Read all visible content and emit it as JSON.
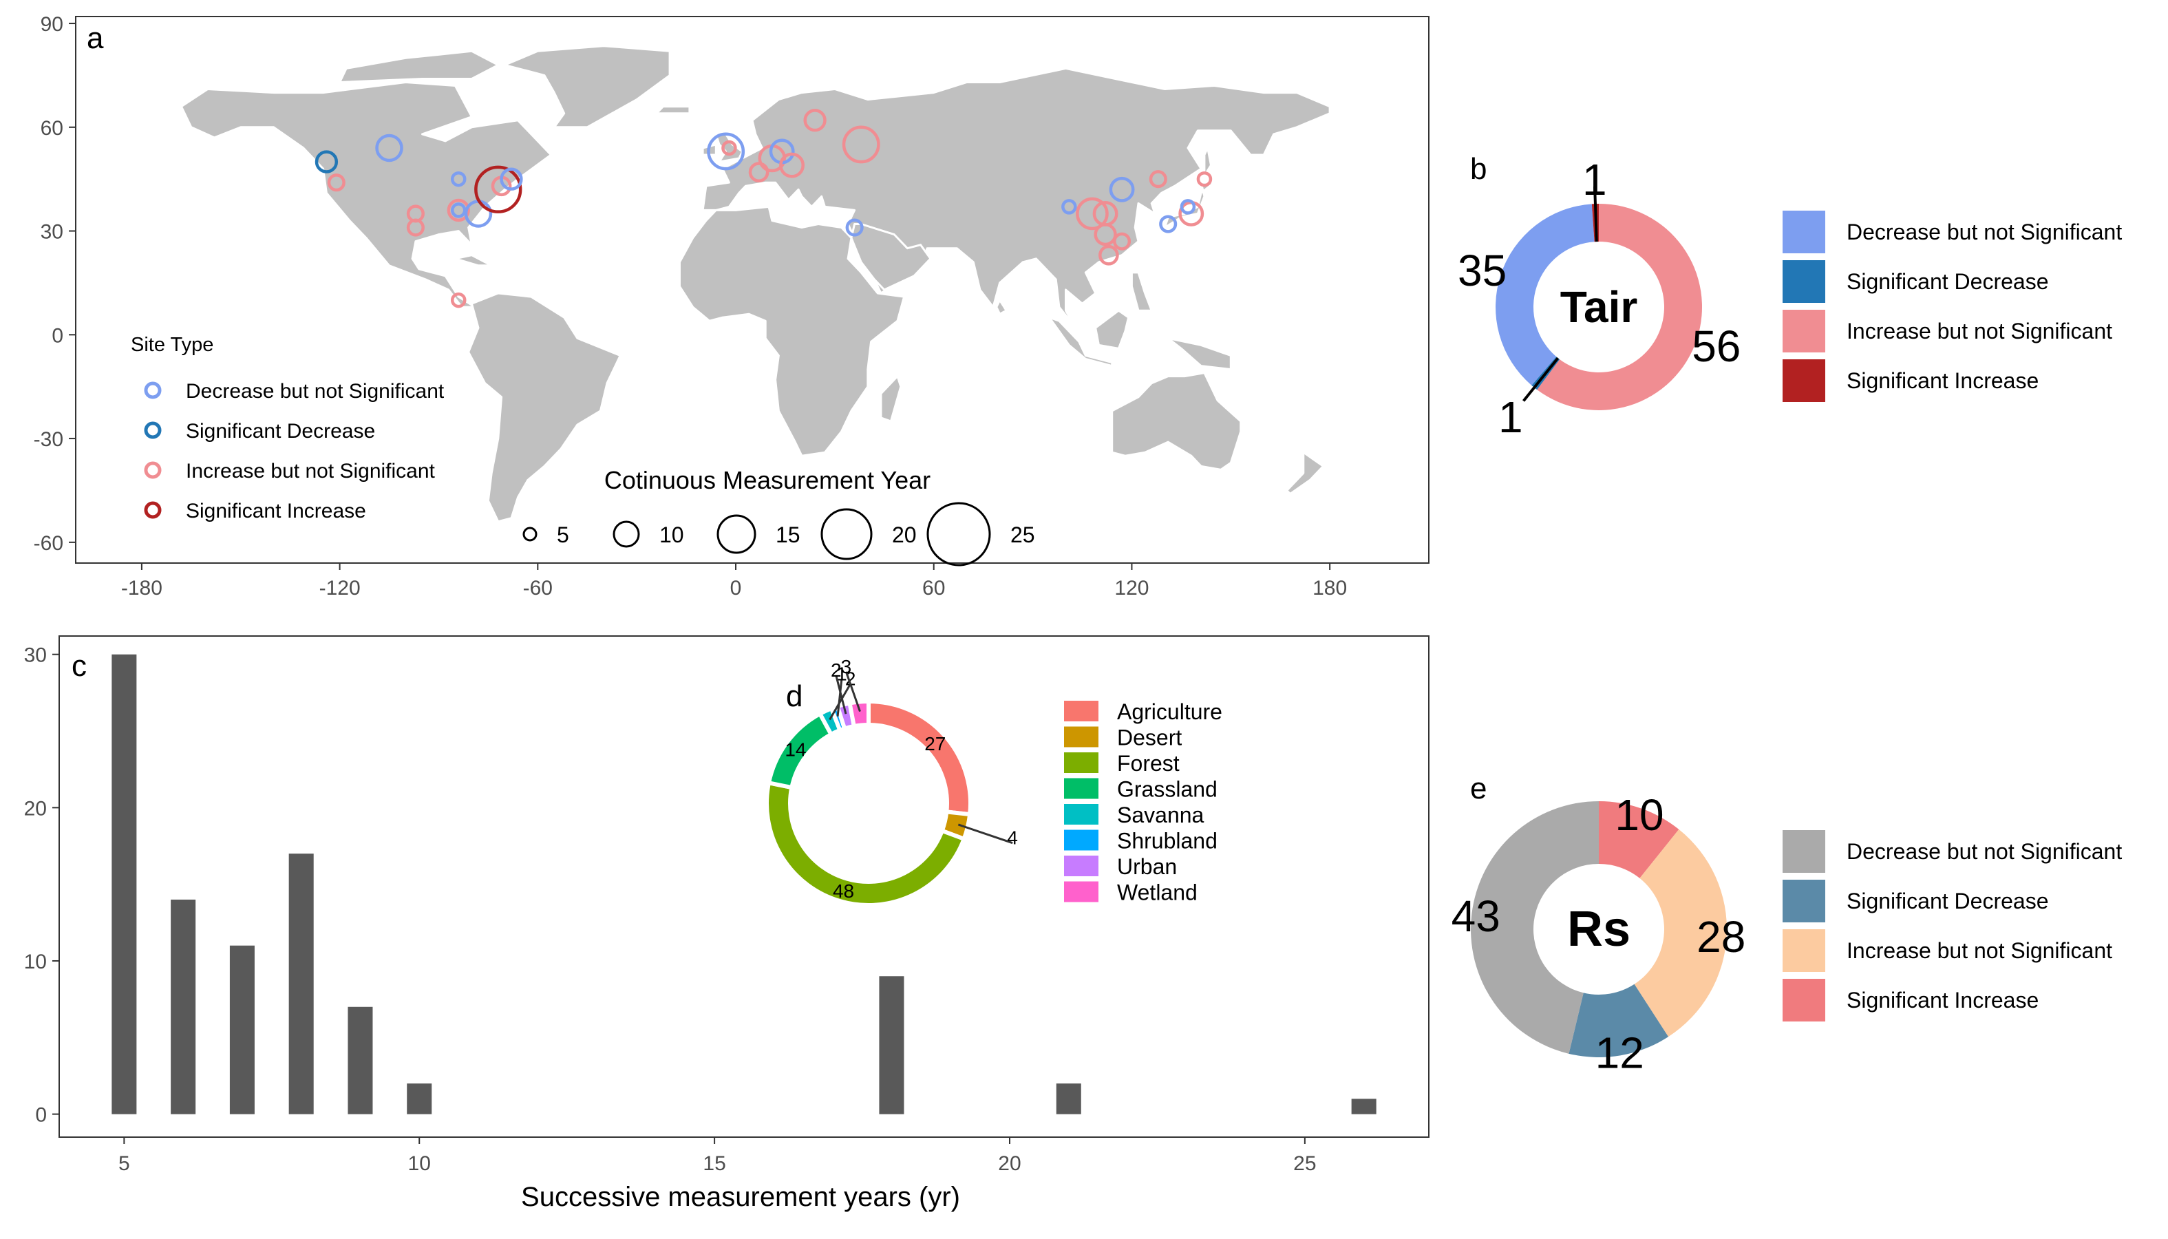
{
  "colors": {
    "decrease_ns": "#7d9ef0",
    "decrease_sig": "#2277b5",
    "increase_ns": "#f08d92",
    "increase_sig": "#b22121",
    "land": "#c0c0c0",
    "bar": "#595959",
    "rs_decrease_ns": "#aaaaaa",
    "rs_decrease_sig": "#5b8aa8",
    "rs_increase_ns": "#fccba0",
    "rs_increase_sig": "#f07b7e"
  },
  "chart_data": [
    {
      "panel_label": "a",
      "type": "scatter",
      "x_ticks": [
        "-180",
        "-120",
        "-60",
        "0",
        "60",
        "120",
        "180"
      ],
      "y_ticks": [
        "90",
        "60",
        "30",
        "0",
        "-30",
        "-60"
      ],
      "xlim": [
        -200,
        210
      ],
      "ylim": [
        -66,
        92
      ],
      "site_legend": {
        "title": "Site Type",
        "items": [
          {
            "key": "decrease_ns",
            "label": "Decrease but not Significant"
          },
          {
            "key": "decrease_sig",
            "label": "Significant Decrease"
          },
          {
            "key": "increase_ns",
            "label": "Increase but not Significant"
          },
          {
            "key": "increase_sig",
            "label": "Significant Increase"
          }
        ]
      },
      "size_legend": {
        "title": "Cotinuous Measurement Year",
        "values": [
          "5",
          "10",
          "15",
          "20",
          "25"
        ]
      },
      "points": [
        {
          "lon": -124,
          "lat": 50,
          "years": 8,
          "type": "decrease_sig"
        },
        {
          "lon": -121,
          "lat": 44,
          "years": 6,
          "type": "increase_ns"
        },
        {
          "lon": -105,
          "lat": 54,
          "years": 10,
          "type": "decrease_ns"
        },
        {
          "lon": -97,
          "lat": 35,
          "years": 6,
          "type": "increase_ns"
        },
        {
          "lon": -97,
          "lat": 31,
          "years": 6,
          "type": "increase_ns"
        },
        {
          "lon": -84,
          "lat": 45,
          "years": 5,
          "type": "decrease_ns"
        },
        {
          "lon": -84,
          "lat": 36,
          "years": 8,
          "type": "increase_ns"
        },
        {
          "lon": -84,
          "lat": 36,
          "years": 5,
          "type": "decrease_ns"
        },
        {
          "lon": -78,
          "lat": 35,
          "years": 10,
          "type": "decrease_ns"
        },
        {
          "lon": -72,
          "lat": 42,
          "years": 18,
          "type": "increase_sig"
        },
        {
          "lon": -71,
          "lat": 43,
          "years": 7,
          "type": "increase_ns"
        },
        {
          "lon": -68,
          "lat": 45,
          "years": 8,
          "type": "decrease_ns"
        },
        {
          "lon": -84,
          "lat": 10,
          "years": 5,
          "type": "increase_ns"
        },
        {
          "lon": -3,
          "lat": 53,
          "years": 14,
          "type": "decrease_ns"
        },
        {
          "lon": -2,
          "lat": 54,
          "years": 5,
          "type": "increase_ns"
        },
        {
          "lon": 7,
          "lat": 47,
          "years": 7,
          "type": "increase_ns"
        },
        {
          "lon": 11,
          "lat": 51,
          "years": 10,
          "type": "increase_ns"
        },
        {
          "lon": 14,
          "lat": 53,
          "years": 9,
          "type": "decrease_ns"
        },
        {
          "lon": 17,
          "lat": 49,
          "years": 9,
          "type": "increase_ns"
        },
        {
          "lon": 24,
          "lat": 62,
          "years": 8,
          "type": "increase_ns"
        },
        {
          "lon": 38,
          "lat": 55,
          "years": 14,
          "type": "increase_ns"
        },
        {
          "lon": 36,
          "lat": 31,
          "years": 6,
          "type": "decrease_ns"
        },
        {
          "lon": 101,
          "lat": 37,
          "years": 5,
          "type": "decrease_ns"
        },
        {
          "lon": 108,
          "lat": 35,
          "years": 12,
          "type": "increase_ns"
        },
        {
          "lon": 112,
          "lat": 35,
          "years": 9,
          "type": "increase_ns"
        },
        {
          "lon": 112,
          "lat": 29,
          "years": 8,
          "type": "increase_ns"
        },
        {
          "lon": 113,
          "lat": 23,
          "years": 7,
          "type": "increase_ns"
        },
        {
          "lon": 117,
          "lat": 27,
          "years": 6,
          "type": "increase_ns"
        },
        {
          "lon": 117,
          "lat": 42,
          "years": 9,
          "type": "decrease_ns"
        },
        {
          "lon": 128,
          "lat": 45,
          "years": 6,
          "type": "increase_ns"
        },
        {
          "lon": 131,
          "lat": 32,
          "years": 6,
          "type": "decrease_ns"
        },
        {
          "lon": 138,
          "lat": 35,
          "years": 9,
          "type": "increase_ns"
        },
        {
          "lon": 137,
          "lat": 37,
          "years": 5,
          "type": "decrease_ns"
        },
        {
          "lon": 142,
          "lat": 45,
          "years": 5,
          "type": "increase_ns"
        }
      ]
    },
    {
      "panel_label": "b",
      "type": "pie",
      "center_label": "Tair",
      "slices": [
        {
          "key": "increase_ns",
          "label": "Increase but not Significant",
          "value": 56
        },
        {
          "key": "decrease_sig",
          "label": "Significant Decrease",
          "value": 1
        },
        {
          "key": "decrease_ns",
          "label": "Decrease but not Significant",
          "value": 35
        },
        {
          "key": "increase_sig",
          "label": "Significant Increase",
          "value": 1
        }
      ],
      "legend": [
        "Decrease but not Significant",
        "Significant Decrease",
        "Increase but not Significant",
        "Significant Increase"
      ]
    },
    {
      "panel_label": "c",
      "type": "bar",
      "xlabel": "Successive measurement years (yr)",
      "ylabel": "",
      "x_ticks": [
        "5",
        "10",
        "15",
        "20",
        "25"
      ],
      "y_ticks": [
        "0",
        "10",
        "20",
        "30"
      ],
      "xlim": [
        3.9,
        27.1
      ],
      "ylim": [
        -1.5,
        31.2
      ],
      "x": [
        5,
        6,
        7,
        8,
        9,
        10,
        18,
        21,
        26
      ],
      "values": [
        30,
        14,
        11,
        17,
        7,
        2,
        9,
        2,
        1
      ]
    },
    {
      "panel_label": "d",
      "type": "pie",
      "slices": [
        {
          "label": "Agriculture",
          "value": 27,
          "color": "#f8766d"
        },
        {
          "label": "Desert",
          "value": 4,
          "color": "#cd9600"
        },
        {
          "label": "Forest",
          "value": 48,
          "color": "#7cae00"
        },
        {
          "label": "Grassland",
          "value": 14,
          "color": "#00be67"
        },
        {
          "label": "Savanna",
          "value": 2,
          "color": "#00bfc4"
        },
        {
          "label": "Shrubland",
          "value": 1,
          "color": "#00a9ff"
        },
        {
          "label": "Urban",
          "value": 2,
          "color": "#c77cff"
        },
        {
          "label": "Wetland",
          "value": 3,
          "color": "#ff61cc"
        }
      ],
      "slice_labels": [
        "27",
        "4",
        "48",
        "14",
        "2",
        "1",
        "2",
        "3"
      ]
    },
    {
      "panel_label": "e",
      "type": "pie",
      "center_label": "Rs",
      "slices": [
        {
          "key": "rs_increase_sig",
          "label": "Significant Increase",
          "value": 10
        },
        {
          "key": "rs_increase_ns",
          "label": "Increase but not Significant",
          "value": 28
        },
        {
          "key": "rs_decrease_sig",
          "label": "Significant Decrease",
          "value": 12
        },
        {
          "key": "rs_decrease_ns",
          "label": "Decrease but not Significant",
          "value": 43
        }
      ],
      "legend": [
        "Decrease but not Significant",
        "Significant Decrease",
        "Increase but not Significant",
        "Significant Increase"
      ]
    }
  ]
}
